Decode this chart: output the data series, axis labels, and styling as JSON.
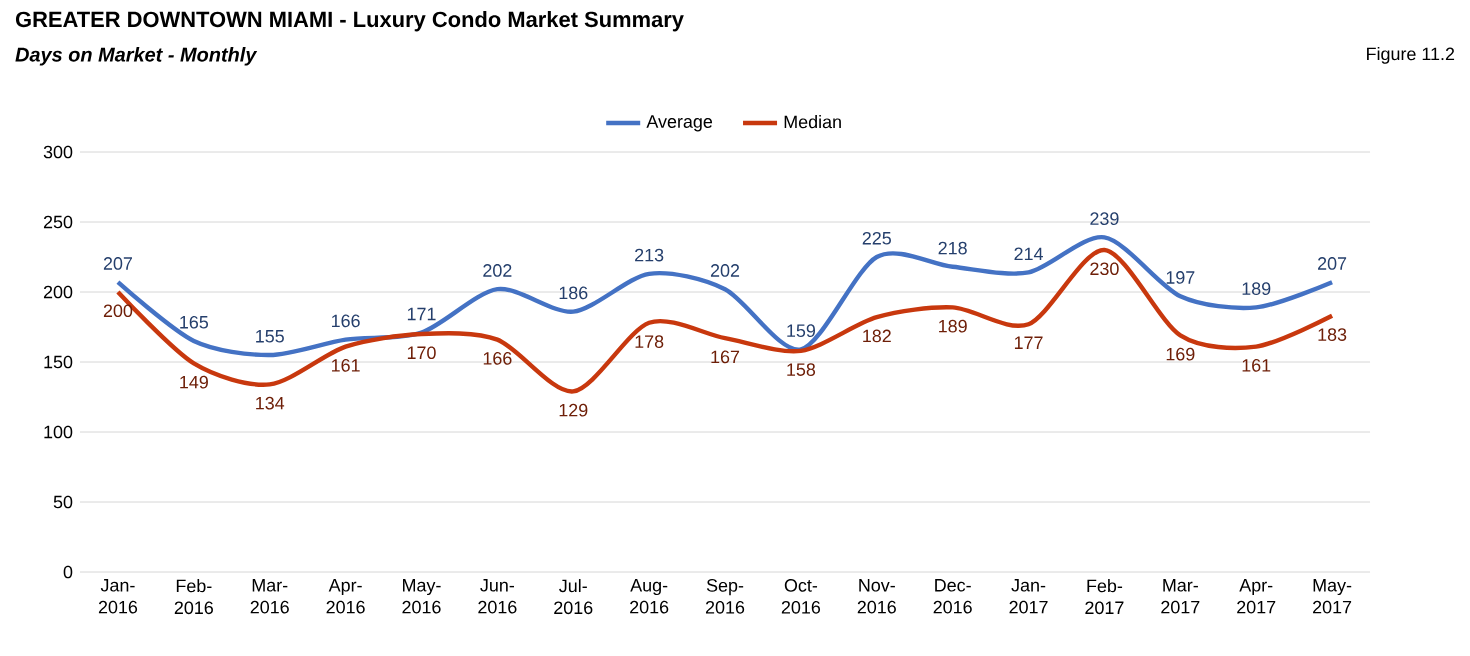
{
  "chart_data": {
    "type": "line",
    "title": "GREATER DOWNTOWN MIAMI - Luxury Condo Market Summary",
    "subtitle": "Days on Market - Monthly",
    "annotations": [
      "Figure 11.2"
    ],
    "categories": [
      "Jan-2016",
      "Feb-2016",
      "Mar-2016",
      "Apr-2016",
      "May-2016",
      "Jun-2016",
      "Jul-2016",
      "Aug-2016",
      "Sep-2016",
      "Oct-2016",
      "Nov-2016",
      "Dec-2016",
      "Jan-2017",
      "Feb-2017",
      "Mar-2017",
      "Apr-2017",
      "May-2017"
    ],
    "series": [
      {
        "name": "Average",
        "color": "#4472c4",
        "values": [
          207,
          165,
          155,
          166,
          171,
          202,
          186,
          213,
          202,
          159,
          225,
          218,
          214,
          239,
          197,
          189,
          207
        ]
      },
      {
        "name": "Median",
        "color": "#c8380e",
        "values": [
          200,
          149,
          134,
          161,
          170,
          166,
          129,
          178,
          167,
          158,
          182,
          189,
          177,
          230,
          169,
          161,
          183
        ]
      }
    ],
    "ylim": [
      0,
      300
    ],
    "yticks": [
      0,
      50,
      100,
      150,
      200,
      250,
      300
    ],
    "grid": "y",
    "legend": "top",
    "data_labels": true,
    "marker": "none",
    "line_style": "solid"
  }
}
